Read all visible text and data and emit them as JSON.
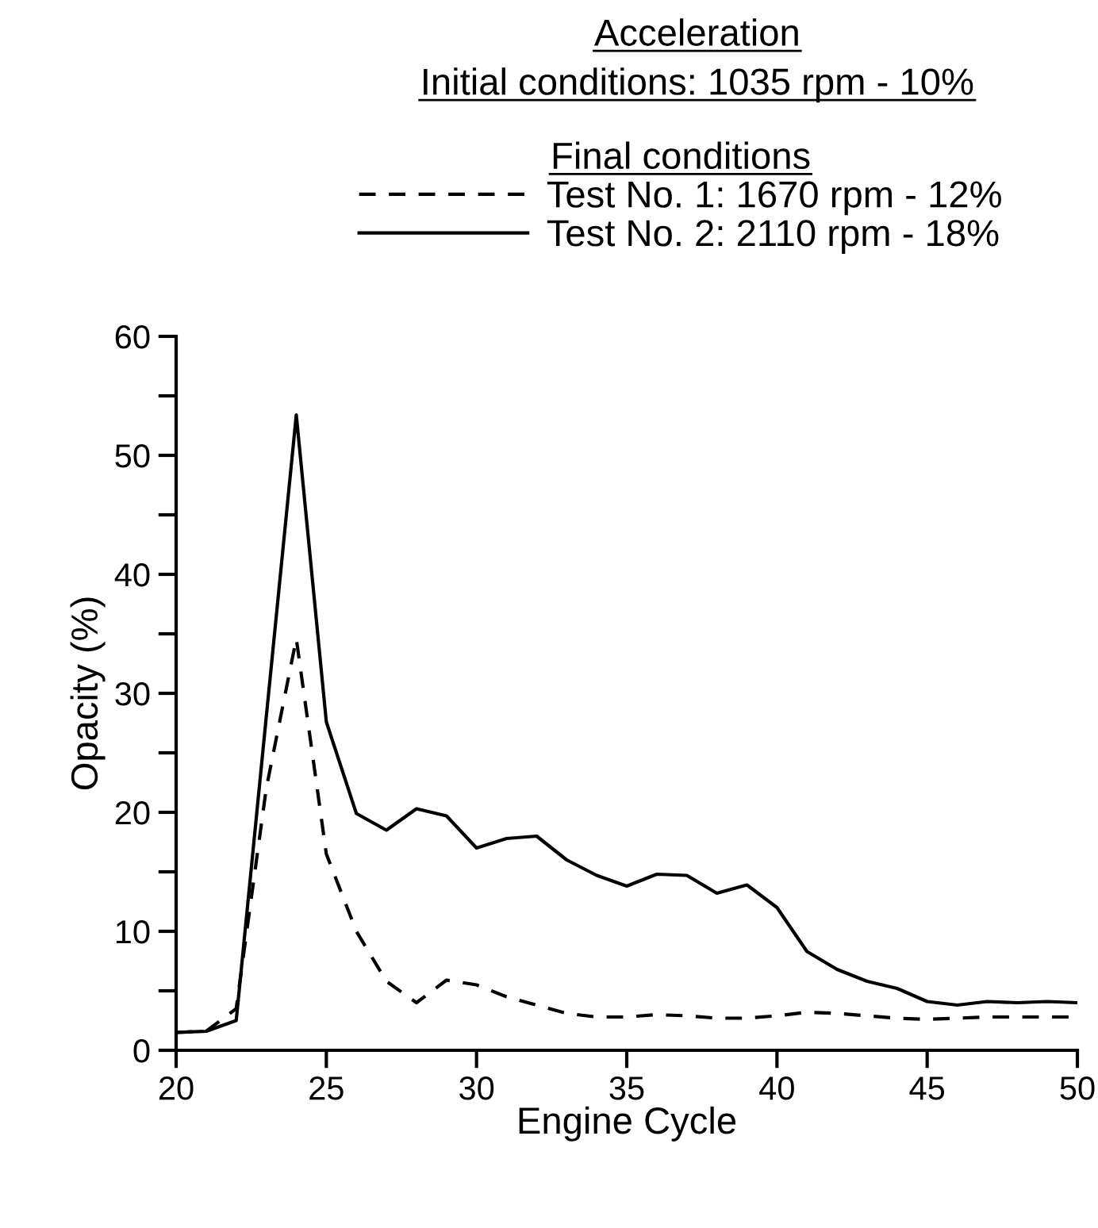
{
  "chart_data": {
    "type": "line",
    "title": "Acceleration",
    "subtitle": "Initial conditions: 1035 rpm - 10%",
    "legend_title": "Final conditions",
    "xlabel": "Engine Cycle",
    "ylabel": "Opacity (%)",
    "x": [
      20,
      21,
      22,
      23,
      24,
      25,
      26,
      27,
      28,
      29,
      30,
      31,
      32,
      33,
      34,
      35,
      36,
      37,
      38,
      39,
      40,
      41,
      42,
      43,
      44,
      45,
      46,
      47,
      48,
      49,
      50
    ],
    "series": [
      {
        "name": "Test No. 1: 1670 rpm - 12%",
        "color": "#000000",
        "line_style": "dashed",
        "values": [
          1.5,
          1.6,
          3.5,
          22,
          34.6,
          16.5,
          10,
          5.8,
          4,
          5.9,
          5.5,
          4.5,
          3.8,
          3.1,
          2.8,
          2.8,
          3.0,
          2.9,
          2.7,
          2.7,
          2.9,
          3.2,
          3.1,
          2.9,
          2.7,
          2.6,
          2.7,
          2.8,
          2.8,
          2.8,
          2.8
        ]
      },
      {
        "name": "Test No. 2: 2110 rpm - 18%",
        "color": "#000000",
        "line_style": "solid",
        "values": [
          1.5,
          1.6,
          2.5,
          28,
          53.4,
          27.6,
          19.9,
          18.5,
          20.3,
          19.7,
          17,
          17.8,
          18,
          16,
          14.7,
          13.8,
          14.8,
          14.7,
          13.2,
          13.9,
          12,
          8.3,
          6.8,
          5.8,
          5.2,
          4.1,
          3.8,
          4.1,
          4.0,
          4.1,
          4.0
        ]
      }
    ],
    "xlim": [
      20,
      50
    ],
    "xticks": [
      20,
      25,
      30,
      35,
      40,
      45,
      50
    ],
    "ylim": [
      0,
      60
    ],
    "yticks": [
      0,
      {
        "value": 5,
        "label": null
      },
      10,
      {
        "value": 15,
        "label": null
      },
      20,
      {
        "value": 25,
        "label": null
      },
      30,
      {
        "value": 35,
        "label": null
      },
      40,
      {
        "value": 45,
        "label": null
      },
      50,
      {
        "value": 55,
        "label": null
      },
      60
    ],
    "grid": false,
    "legend": "top right",
    "marker": "none"
  }
}
